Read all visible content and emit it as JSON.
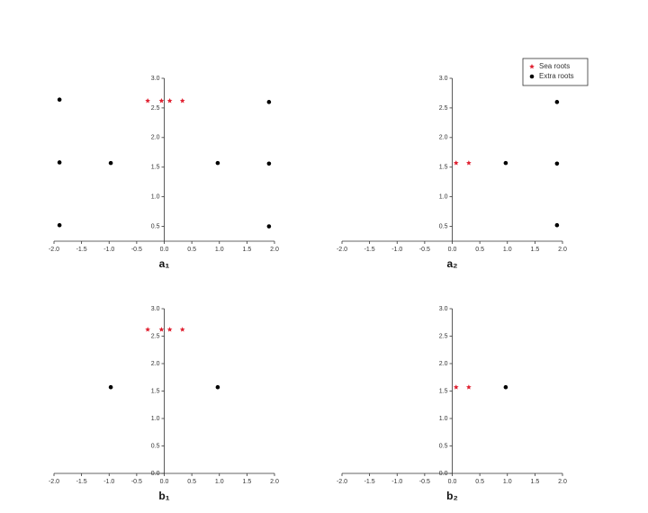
{
  "chart_data": [
    {
      "type": "scatter",
      "xlabel": "a₁",
      "xlim": [
        -2.0,
        2.0
      ],
      "ylim": [
        0.25,
        3.0
      ],
      "xticks": [
        {
          "value": -2.0,
          "label": "-2.0"
        },
        {
          "value": -1.5,
          "label": "-1.5"
        },
        {
          "value": -1.0,
          "label": "-1.0"
        },
        {
          "value": -0.5,
          "label": "-0.5"
        },
        {
          "value": 0.0,
          "label": "0.0"
        },
        0.5,
        {
          "value": 1.0,
          "label": "1.0"
        },
        1.5,
        {
          "value": 2.0,
          "label": "2.0"
        }
      ],
      "yticks": [
        0.5,
        {
          "value": 1.0,
          "label": "1.0"
        },
        1.5,
        {
          "value": 2.0,
          "label": "2.0"
        },
        2.5,
        {
          "value": 3.0,
          "label": "3.0"
        }
      ],
      "series": [
        {
          "color": "#e02030",
          "marker": "star",
          "x": [
            -0.3,
            -0.05,
            0.1,
            0.33
          ],
          "y": [
            2.62,
            2.62,
            2.62,
            2.62
          ]
        },
        {
          "color": "#000000",
          "marker": "dot",
          "x": [
            -1.9,
            1.9,
            -1.9,
            -0.97,
            0.97,
            1.9,
            -1.9,
            1.9
          ],
          "y": [
            2.64,
            2.6,
            1.58,
            1.57,
            1.57,
            1.56,
            0.52,
            0.5
          ]
        }
      ]
    },
    {
      "type": "scatter",
      "xlabel": "a₂",
      "xlim": [
        -2.0,
        2.0
      ],
      "ylim": [
        0.25,
        3.0
      ],
      "xticks": [
        {
          "value": -2.0,
          "label": "-2.0"
        },
        {
          "value": -1.5,
          "label": "-1.5"
        },
        {
          "value": -1.0,
          "label": "-1.0"
        },
        {
          "value": -0.5,
          "label": "-0.5"
        },
        {
          "value": 0.0,
          "label": "0.0"
        },
        0.5,
        {
          "value": 1.0,
          "label": "1.0"
        },
        1.5,
        {
          "value": 2.0,
          "label": "2.0"
        }
      ],
      "yticks": [
        0.5,
        {
          "value": 1.0,
          "label": "1.0"
        },
        1.5,
        {
          "value": 2.0,
          "label": "2.0"
        },
        2.5,
        {
          "value": 3.0,
          "label": "3.0"
        }
      ],
      "legend": "upper right",
      "series": [
        {
          "name": "Sea roots",
          "color": "#e02030",
          "marker": "star",
          "x": [
            0.07,
            0.3
          ],
          "y": [
            1.57,
            1.57
          ]
        },
        {
          "name": "Extra roots",
          "color": "#000000",
          "marker": "dot",
          "x": [
            0.97,
            1.9,
            1.9,
            1.9
          ],
          "y": [
            1.57,
            2.6,
            1.56,
            0.52
          ]
        }
      ]
    },
    {
      "type": "scatter",
      "xlabel": "b₁",
      "xlim": [
        -2.0,
        2.0
      ],
      "ylim": [
        0.0,
        3.0
      ],
      "xticks": [
        {
          "value": -2.0,
          "label": "-2.0"
        },
        {
          "value": -1.5,
          "label": "-1.5"
        },
        {
          "value": -1.0,
          "label": "-1.0"
        },
        {
          "value": -0.5,
          "label": "-0.5"
        },
        {
          "value": 0.0,
          "label": "0.0"
        },
        0.5,
        {
          "value": 1.0,
          "label": "1.0"
        },
        1.5,
        {
          "value": 2.0,
          "label": "2.0"
        }
      ],
      "yticks": [
        {
          "value": 0.0,
          "label": "0.0"
        },
        0.5,
        {
          "value": 1.0,
          "label": "1.0"
        },
        1.5,
        {
          "value": 2.0,
          "label": "2.0"
        },
        2.5,
        {
          "value": 3.0,
          "label": "3.0"
        }
      ],
      "series": [
        {
          "color": "#e02030",
          "marker": "star",
          "x": [
            -0.3,
            -0.05,
            0.1,
            0.33
          ],
          "y": [
            2.62,
            2.62,
            2.62,
            2.62
          ]
        },
        {
          "color": "#000000",
          "marker": "dot",
          "x": [
            -0.97,
            0.97
          ],
          "y": [
            1.57,
            1.57
          ]
        }
      ]
    },
    {
      "type": "scatter",
      "xlabel": "b₂",
      "xlim": [
        -2.0,
        2.0
      ],
      "ylim": [
        0.0,
        3.0
      ],
      "xticks": [
        {
          "value": -2.0,
          "label": "-2.0"
        },
        {
          "value": -1.5,
          "label": "-1.5"
        },
        {
          "value": -1.0,
          "label": "-1.0"
        },
        {
          "value": -0.5,
          "label": "-0.5"
        },
        {
          "value": 0.0,
          "label": "0.0"
        },
        0.5,
        {
          "value": 1.0,
          "label": "1.0"
        },
        1.5,
        {
          "value": 2.0,
          "label": "2.0"
        }
      ],
      "yticks": [
        {
          "value": 0.0,
          "label": "0.0"
        },
        0.5,
        {
          "value": 1.0,
          "label": "1.0"
        },
        1.5,
        {
          "value": 2.0,
          "label": "2.0"
        },
        2.5,
        {
          "value": 3.0,
          "label": "3.0"
        }
      ],
      "series": [
        {
          "color": "#e02030",
          "marker": "star",
          "x": [
            0.07,
            0.3
          ],
          "y": [
            1.57,
            1.57
          ]
        },
        {
          "color": "#000000",
          "marker": "dot",
          "x": [
            0.97
          ],
          "y": [
            1.57
          ]
        }
      ]
    }
  ]
}
